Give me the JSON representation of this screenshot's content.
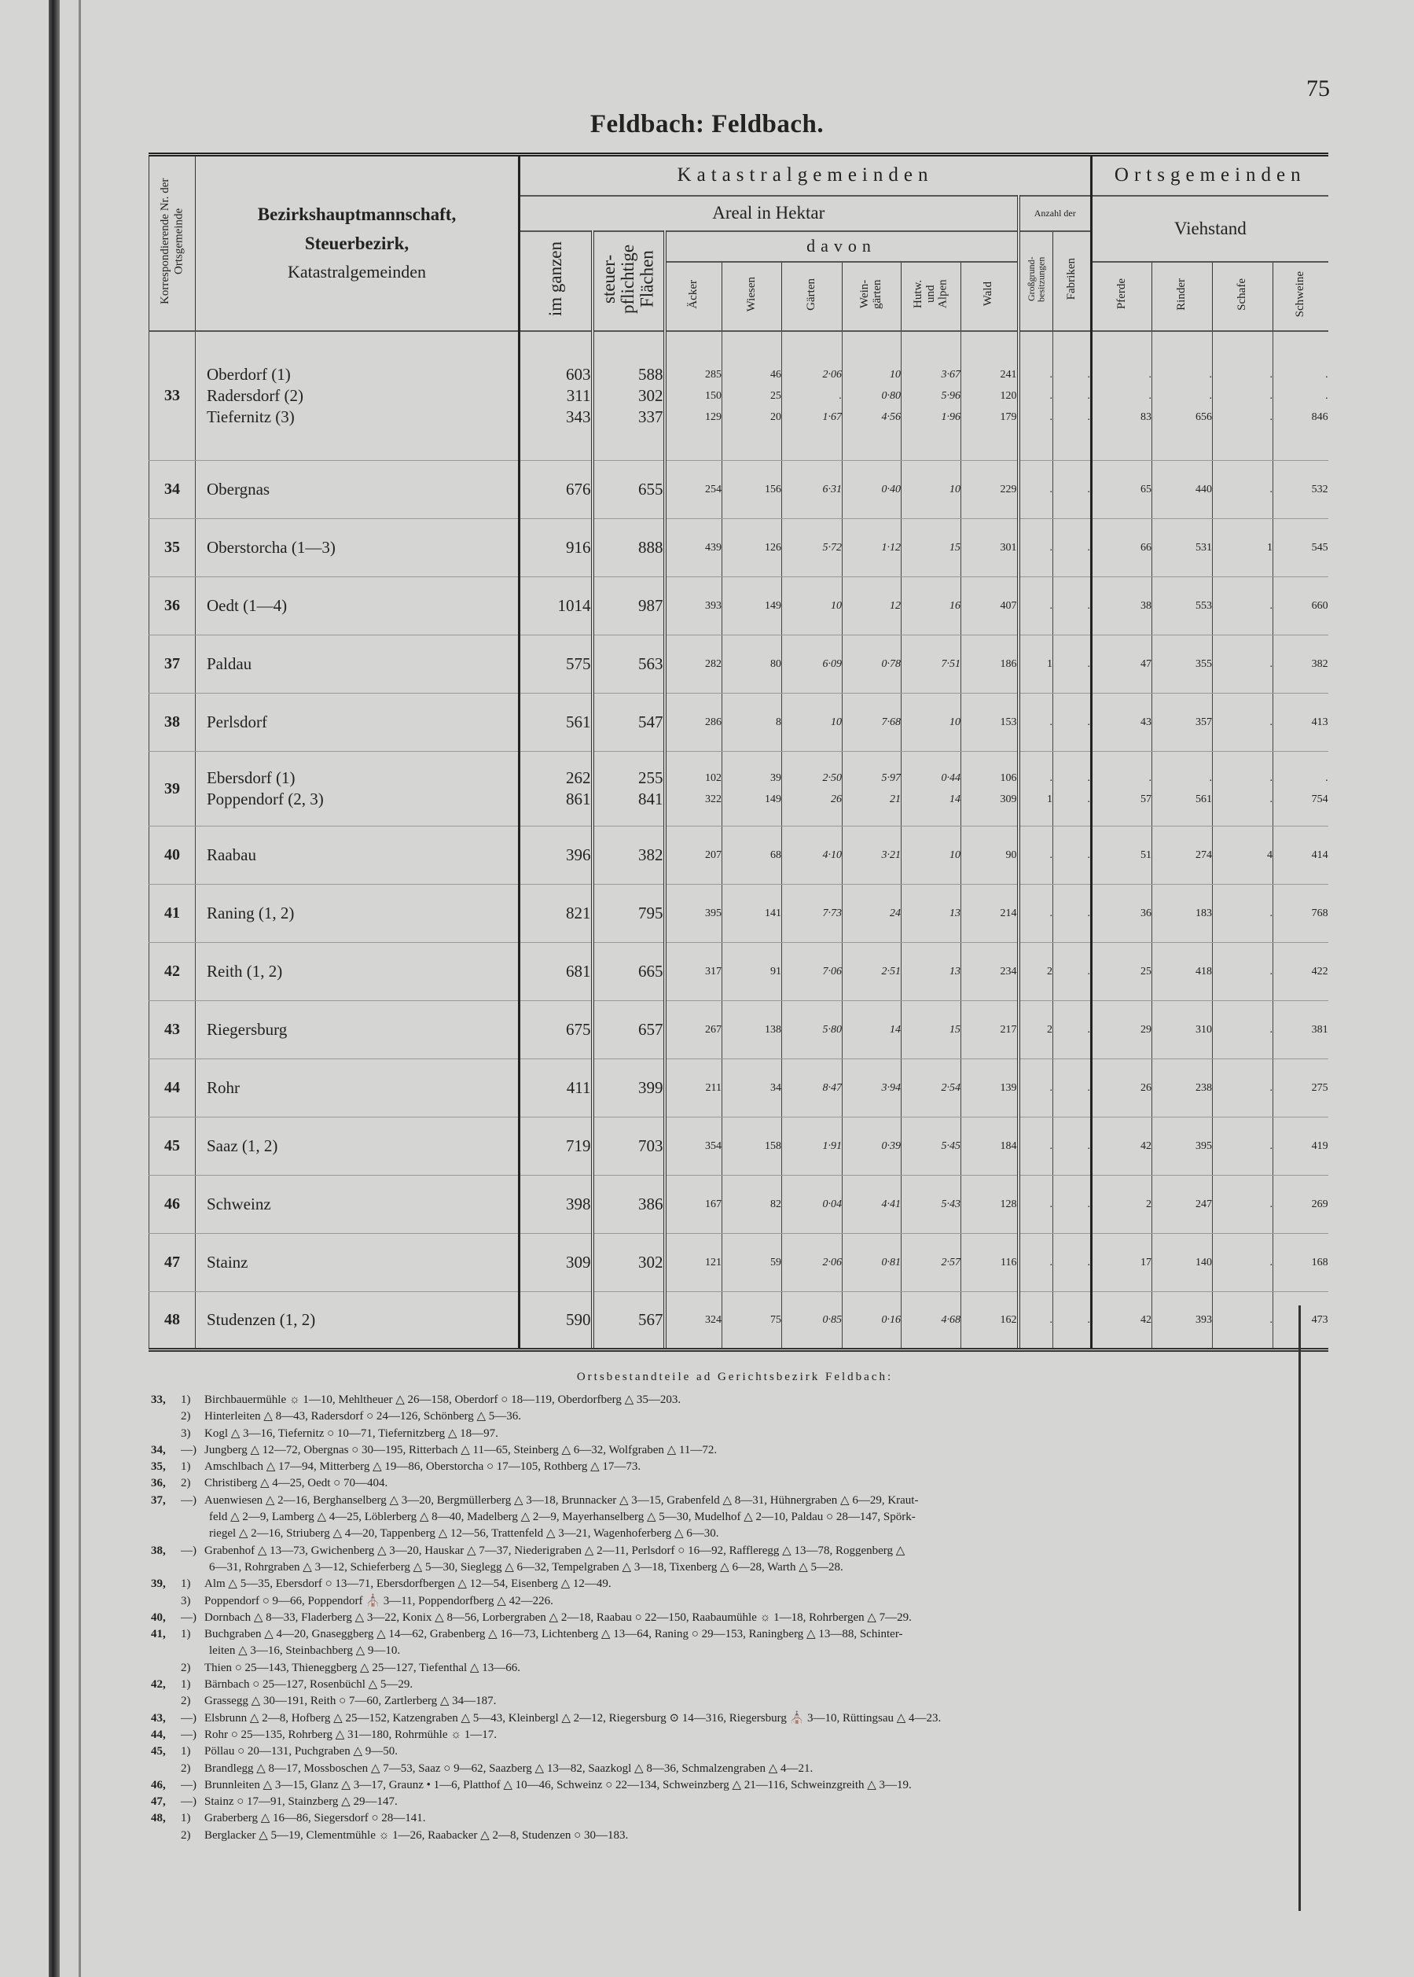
{
  "page_number": "75",
  "title": "Feldbach: Feldbach.",
  "header": {
    "nr": "Korrespondierende Nr. der Ortsgemeinde",
    "name_line1": "Bezirkshauptmannschaft,",
    "name_line2": "Steuerbezirk,",
    "name_line3": "Katastralgemeinden",
    "katastral": "Katastralgemeinden",
    "orts": "Ortsgemeinden",
    "areal": "Areal in Hektar",
    "anzahl": "Anzahl der",
    "viehstand": "Viehstand",
    "davon": "davon",
    "columns": [
      "im ganzen",
      "steuer-pflichtige Flächen",
      "Äcker",
      "Wiesen",
      "Gärten",
      "Wein-gärten",
      "Hutw. und Alpen",
      "Wald",
      "Großgrund-besitzungen",
      "Fabriken",
      "Pferde",
      "Rinder",
      "Schafe",
      "Schweine"
    ]
  },
  "rows": [
    {
      "nr": "33",
      "names": [
        "Oberdorf (1)",
        "Radersdorf (2)",
        "Tiefernitz (3)"
      ],
      "cols": [
        [
          "603",
          "311",
          "343"
        ],
        [
          "588",
          "302",
          "337"
        ],
        [
          "285",
          "150",
          "129"
        ],
        [
          "46",
          "25",
          "20"
        ],
        [
          "2·06",
          ".",
          "1·67"
        ],
        [
          "10",
          "0·80",
          "4·56"
        ],
        [
          "3·67",
          "5·96",
          "1·96"
        ],
        [
          "241",
          "120",
          "179"
        ],
        [
          ".",
          ".",
          "."
        ],
        [
          ".",
          ".",
          "."
        ],
        [
          ".",
          ".",
          "83"
        ],
        [
          ".",
          ".",
          "656"
        ],
        [
          ".",
          ".",
          "."
        ],
        [
          ".",
          ".",
          "846"
        ]
      ]
    },
    {
      "nr": "34",
      "names": [
        "Obergnas"
      ],
      "cols": [
        [
          "676"
        ],
        [
          "655"
        ],
        [
          "254"
        ],
        [
          "156"
        ],
        [
          "6·31"
        ],
        [
          "0·40"
        ],
        [
          "10"
        ],
        [
          "229"
        ],
        [
          "."
        ],
        [
          "."
        ],
        [
          "65"
        ],
        [
          "440"
        ],
        [
          "."
        ],
        [
          "532"
        ]
      ]
    },
    {
      "nr": "35",
      "names": [
        "Oberstorcha (1—3)"
      ],
      "cols": [
        [
          "916"
        ],
        [
          "888"
        ],
        [
          "439"
        ],
        [
          "126"
        ],
        [
          "5·72"
        ],
        [
          "1·12"
        ],
        [
          "15"
        ],
        [
          "301"
        ],
        [
          "."
        ],
        [
          "."
        ],
        [
          "66"
        ],
        [
          "531"
        ],
        [
          "1"
        ],
        [
          "545"
        ]
      ]
    },
    {
      "nr": "36",
      "names": [
        "Oedt (1—4)"
      ],
      "cols": [
        [
          "1014"
        ],
        [
          "987"
        ],
        [
          "393"
        ],
        [
          "149"
        ],
        [
          "10"
        ],
        [
          "12"
        ],
        [
          "16"
        ],
        [
          "407"
        ],
        [
          "."
        ],
        [
          "."
        ],
        [
          "38"
        ],
        [
          "553"
        ],
        [
          "."
        ],
        [
          "660"
        ]
      ]
    },
    {
      "nr": "37",
      "names": [
        "Paldau"
      ],
      "cols": [
        [
          "575"
        ],
        [
          "563"
        ],
        [
          "282"
        ],
        [
          "80"
        ],
        [
          "6·09"
        ],
        [
          "0·78"
        ],
        [
          "7·51"
        ],
        [
          "186"
        ],
        [
          "1"
        ],
        [
          "."
        ],
        [
          "47"
        ],
        [
          "355"
        ],
        [
          "."
        ],
        [
          "382"
        ]
      ]
    },
    {
      "nr": "38",
      "names": [
        "Perlsdorf"
      ],
      "cols": [
        [
          "561"
        ],
        [
          "547"
        ],
        [
          "286"
        ],
        [
          "8"
        ],
        [
          "10"
        ],
        [
          "7·68"
        ],
        [
          "10"
        ],
        [
          "153"
        ],
        [
          "."
        ],
        [
          "."
        ],
        [
          "43"
        ],
        [
          "357"
        ],
        [
          "."
        ],
        [
          "413"
        ]
      ]
    },
    {
      "nr": "39",
      "names": [
        "Ebersdorf (1)",
        "Poppendorf (2, 3)"
      ],
      "cols": [
        [
          "262",
          "861"
        ],
        [
          "255",
          "841"
        ],
        [
          "102",
          "322"
        ],
        [
          "39",
          "149"
        ],
        [
          "2·50",
          "26"
        ],
        [
          "5·97",
          "21"
        ],
        [
          "0·44",
          "14"
        ],
        [
          "106",
          "309"
        ],
        [
          ".",
          "1"
        ],
        [
          ".",
          "."
        ],
        [
          ".",
          "57"
        ],
        [
          ".",
          "561"
        ],
        [
          ".",
          "."
        ],
        [
          ".",
          "754"
        ]
      ]
    },
    {
      "nr": "40",
      "names": [
        "Raabau"
      ],
      "cols": [
        [
          "396"
        ],
        [
          "382"
        ],
        [
          "207"
        ],
        [
          "68"
        ],
        [
          "4·10"
        ],
        [
          "3·21"
        ],
        [
          "10"
        ],
        [
          "90"
        ],
        [
          "."
        ],
        [
          "."
        ],
        [
          "51"
        ],
        [
          "274"
        ],
        [
          "4"
        ],
        [
          "414"
        ]
      ]
    },
    {
      "nr": "41",
      "names": [
        "Raning (1, 2)"
      ],
      "cols": [
        [
          "821"
        ],
        [
          "795"
        ],
        [
          "395"
        ],
        [
          "141"
        ],
        [
          "7·73"
        ],
        [
          "24"
        ],
        [
          "13"
        ],
        [
          "214"
        ],
        [
          "."
        ],
        [
          "."
        ],
        [
          "36"
        ],
        [
          "183"
        ],
        [
          "."
        ],
        [
          "768"
        ]
      ]
    },
    {
      "nr": "42",
      "names": [
        "Reith (1, 2)"
      ],
      "cols": [
        [
          "681"
        ],
        [
          "665"
        ],
        [
          "317"
        ],
        [
          "91"
        ],
        [
          "7·06"
        ],
        [
          "2·51"
        ],
        [
          "13"
        ],
        [
          "234"
        ],
        [
          "2"
        ],
        [
          "."
        ],
        [
          "25"
        ],
        [
          "418"
        ],
        [
          "."
        ],
        [
          "422"
        ]
      ]
    },
    {
      "nr": "43",
      "names": [
        "Riegersburg"
      ],
      "cols": [
        [
          "675"
        ],
        [
          "657"
        ],
        [
          "267"
        ],
        [
          "138"
        ],
        [
          "5·80"
        ],
        [
          "14"
        ],
        [
          "15"
        ],
        [
          "217"
        ],
        [
          "2"
        ],
        [
          "."
        ],
        [
          "29"
        ],
        [
          "310"
        ],
        [
          "."
        ],
        [
          "381"
        ]
      ]
    },
    {
      "nr": "44",
      "names": [
        "Rohr"
      ],
      "cols": [
        [
          "411"
        ],
        [
          "399"
        ],
        [
          "211"
        ],
        [
          "34"
        ],
        [
          "8·47"
        ],
        [
          "3·94"
        ],
        [
          "2·54"
        ],
        [
          "139"
        ],
        [
          "."
        ],
        [
          "."
        ],
        [
          "26"
        ],
        [
          "238"
        ],
        [
          "."
        ],
        [
          "275"
        ]
      ]
    },
    {
      "nr": "45",
      "names": [
        "Saaz (1, 2)"
      ],
      "cols": [
        [
          "719"
        ],
        [
          "703"
        ],
        [
          "354"
        ],
        [
          "158"
        ],
        [
          "1·91"
        ],
        [
          "0·39"
        ],
        [
          "5·45"
        ],
        [
          "184"
        ],
        [
          "."
        ],
        [
          "."
        ],
        [
          "42"
        ],
        [
          "395"
        ],
        [
          "."
        ],
        [
          "419"
        ]
      ]
    },
    {
      "nr": "46",
      "names": [
        "Schweinz"
      ],
      "cols": [
        [
          "398"
        ],
        [
          "386"
        ],
        [
          "167"
        ],
        [
          "82"
        ],
        [
          "0·04"
        ],
        [
          "4·41"
        ],
        [
          "5·43"
        ],
        [
          "128"
        ],
        [
          "."
        ],
        [
          "."
        ],
        [
          "2"
        ],
        [
          "247"
        ],
        [
          "."
        ],
        [
          "269"
        ]
      ]
    },
    {
      "nr": "47",
      "names": [
        "Stainz"
      ],
      "cols": [
        [
          "309"
        ],
        [
          "302"
        ],
        [
          "121"
        ],
        [
          "59"
        ],
        [
          "2·06"
        ],
        [
          "0·81"
        ],
        [
          "2·57"
        ],
        [
          "116"
        ],
        [
          "."
        ],
        [
          "."
        ],
        [
          "17"
        ],
        [
          "140"
        ],
        [
          "."
        ],
        [
          "168"
        ]
      ]
    },
    {
      "nr": "48",
      "names": [
        "Studenzen (1, 2)"
      ],
      "cols": [
        [
          "590"
        ],
        [
          "567"
        ],
        [
          "324"
        ],
        [
          "75"
        ],
        [
          "0·85"
        ],
        [
          "0·16"
        ],
        [
          "4·68"
        ],
        [
          "162"
        ],
        [
          "."
        ],
        [
          "."
        ],
        [
          "42"
        ],
        [
          "393"
        ],
        [
          "."
        ],
        [
          "473"
        ]
      ]
    }
  ],
  "notes": {
    "heading": "Ortsbestandteile ad Gerichtsbezirk Feldbach:",
    "lines": [
      {
        "nr": "33,",
        "sub": "1)",
        "text": "Birchbauermühle ☼ 1—10, Mehltheuer △ 26—158, Oberdorf ○ 18—119, Oberdorfberg △ 35—203."
      },
      {
        "nr": "",
        "sub": "2)",
        "text": "Hinterleiten △ 8—43, Radersdorf ○ 24—126, Schönberg △ 5—36."
      },
      {
        "nr": "",
        "sub": "3)",
        "text": "Kogl △ 3—16, Tiefernitz ○ 10—71, Tiefernitzberg △ 18—97."
      },
      {
        "nr": "34,",
        "sub": "—)",
        "text": "Jungberg △ 12—72, Obergnas ○ 30—195, Ritterbach △ 11—65, Steinberg △ 6—32, Wolfgraben △ 11—72."
      },
      {
        "nr": "35,",
        "sub": "1)",
        "text": "Amschlbach △ 17—94, Mitterberg △ 19—86, Oberstorcha ○ 17—105, Rothberg △ 17—73."
      },
      {
        "nr": "36,",
        "sub": "2)",
        "text": "Christiberg △ 4—25, Oedt ○ 70—404."
      },
      {
        "nr": "37,",
        "sub": "—)",
        "text": "Auenwiesen △ 2—16, Berghanselberg △ 3—20, Bergmüllerberg △ 3—18, Brunnacker △ 3—15, Grabenfeld △ 8—31, Hühnergraben △ 6—29, Kraut-"
      },
      {
        "nr": "",
        "sub": "",
        "text": "feld △ 2—9, Lamberg △ 4—25, Löblerberg △ 8—40, Madelberg △ 2—9, Mayerhanselberg △ 5—30, Mudelhof △ 2—10, Paldau ○ 28—147, Spörk-"
      },
      {
        "nr": "",
        "sub": "",
        "text": "riegel △ 2—16, Striuberg △ 4—20, Tappenberg △ 12—56, Trattenfeld △ 3—21, Wagenhoferberg △ 6—30."
      },
      {
        "nr": "38,",
        "sub": "—)",
        "text": "Grabenhof △ 13—73, Gwichenberg △ 3—20, Hauskar △ 7—37, Niederigraben △ 2—11, Perlsdorf ○ 16—92, Raffleregg △ 13—78, Roggenberg △"
      },
      {
        "nr": "",
        "sub": "",
        "text": "6—31, Rohrgraben △ 3—12, Schieferberg △ 5—30, Sieglegg △ 6—32, Tempelgraben △ 3—18, Tixenberg △ 6—28, Warth △ 5—28."
      },
      {
        "nr": "39,",
        "sub": "1)",
        "text": "Alm △ 5—35, Ebersdorf ○ 13—71, Ebersdorfbergen △ 12—54, Eisenberg △ 12—49."
      },
      {
        "nr": "",
        "sub": "3)",
        "text": "Poppendorf ○ 9—66, Poppendorf ⛪ 3—11, Poppendorfberg △ 42—226."
      },
      {
        "nr": "40,",
        "sub": "—)",
        "text": "Dornbach △ 8—33, Fladerberg △ 3—22, Konix △ 8—56, Lorbergraben △ 2—18, Raabau ○ 22—150, Raabaumühle ☼ 1—18, Rohrbergen △ 7—29."
      },
      {
        "nr": "41,",
        "sub": "1)",
        "text": "Buchgraben △ 4—20, Gnaseggberg △ 14—62, Grabenberg △ 16—73, Lichtenberg △ 13—64, Raning ○ 29—153, Raningberg △ 13—88, Schinter-"
      },
      {
        "nr": "",
        "sub": "",
        "text": "leiten △ 3—16, Steinbachberg △ 9—10."
      },
      {
        "nr": "",
        "sub": "2)",
        "text": "Thien ○ 25—143, Thieneggberg △ 25—127, Tiefenthal △ 13—66."
      },
      {
        "nr": "42,",
        "sub": "1)",
        "text": "Bärnbach ○ 25—127, Rosenbüchl △ 5—29."
      },
      {
        "nr": "",
        "sub": "2)",
        "text": "Grassegg △ 30—191, Reith ○ 7—60, Zartlerberg △ 34—187."
      },
      {
        "nr": "43,",
        "sub": "—)",
        "text": "Elsbrunn △ 2—8, Hofberg △ 25—152, Katzengraben △ 5—43, Kleinbergl △ 2—12, Riegersburg ⊙ 14—316, Riegersburg ⛪ 3—10, Rüttingsau △ 4—23."
      },
      {
        "nr": "44,",
        "sub": "—)",
        "text": "Rohr ○ 25—135, Rohrberg △ 31—180, Rohrmühle ☼ 1—17."
      },
      {
        "nr": "45,",
        "sub": "1)",
        "text": "Pöllau ○ 20—131, Puchgraben △ 9—50."
      },
      {
        "nr": "",
        "sub": "2)",
        "text": "Brandlegg △ 8—17, Mossboschen △ 7—53, Saaz ○ 9—62, Saazberg △ 13—82, Saazkogl △ 8—36, Schmalzengraben △ 4—21."
      },
      {
        "nr": "46,",
        "sub": "—)",
        "text": "Brunnleiten △ 3—15, Glanz △ 3—17, Graunz • 1—6, Platthof △ 10—46, Schweinz ○ 22—134, Schweinzberg △ 21—116, Schweinzgreith △ 3—19."
      },
      {
        "nr": "47,",
        "sub": "—)",
        "text": "Stainz ○ 17—91, Stainzberg △ 29—147."
      },
      {
        "nr": "48,",
        "sub": "1)",
        "text": "Graberberg △ 16—86, Siegersdorf ○ 28—141."
      },
      {
        "nr": "",
        "sub": "2)",
        "text": "Berglacker △ 5—19, Clementmühle ☼ 1—26, Raabacker △ 2—8, Studenzen ○ 30—183."
      }
    ]
  }
}
